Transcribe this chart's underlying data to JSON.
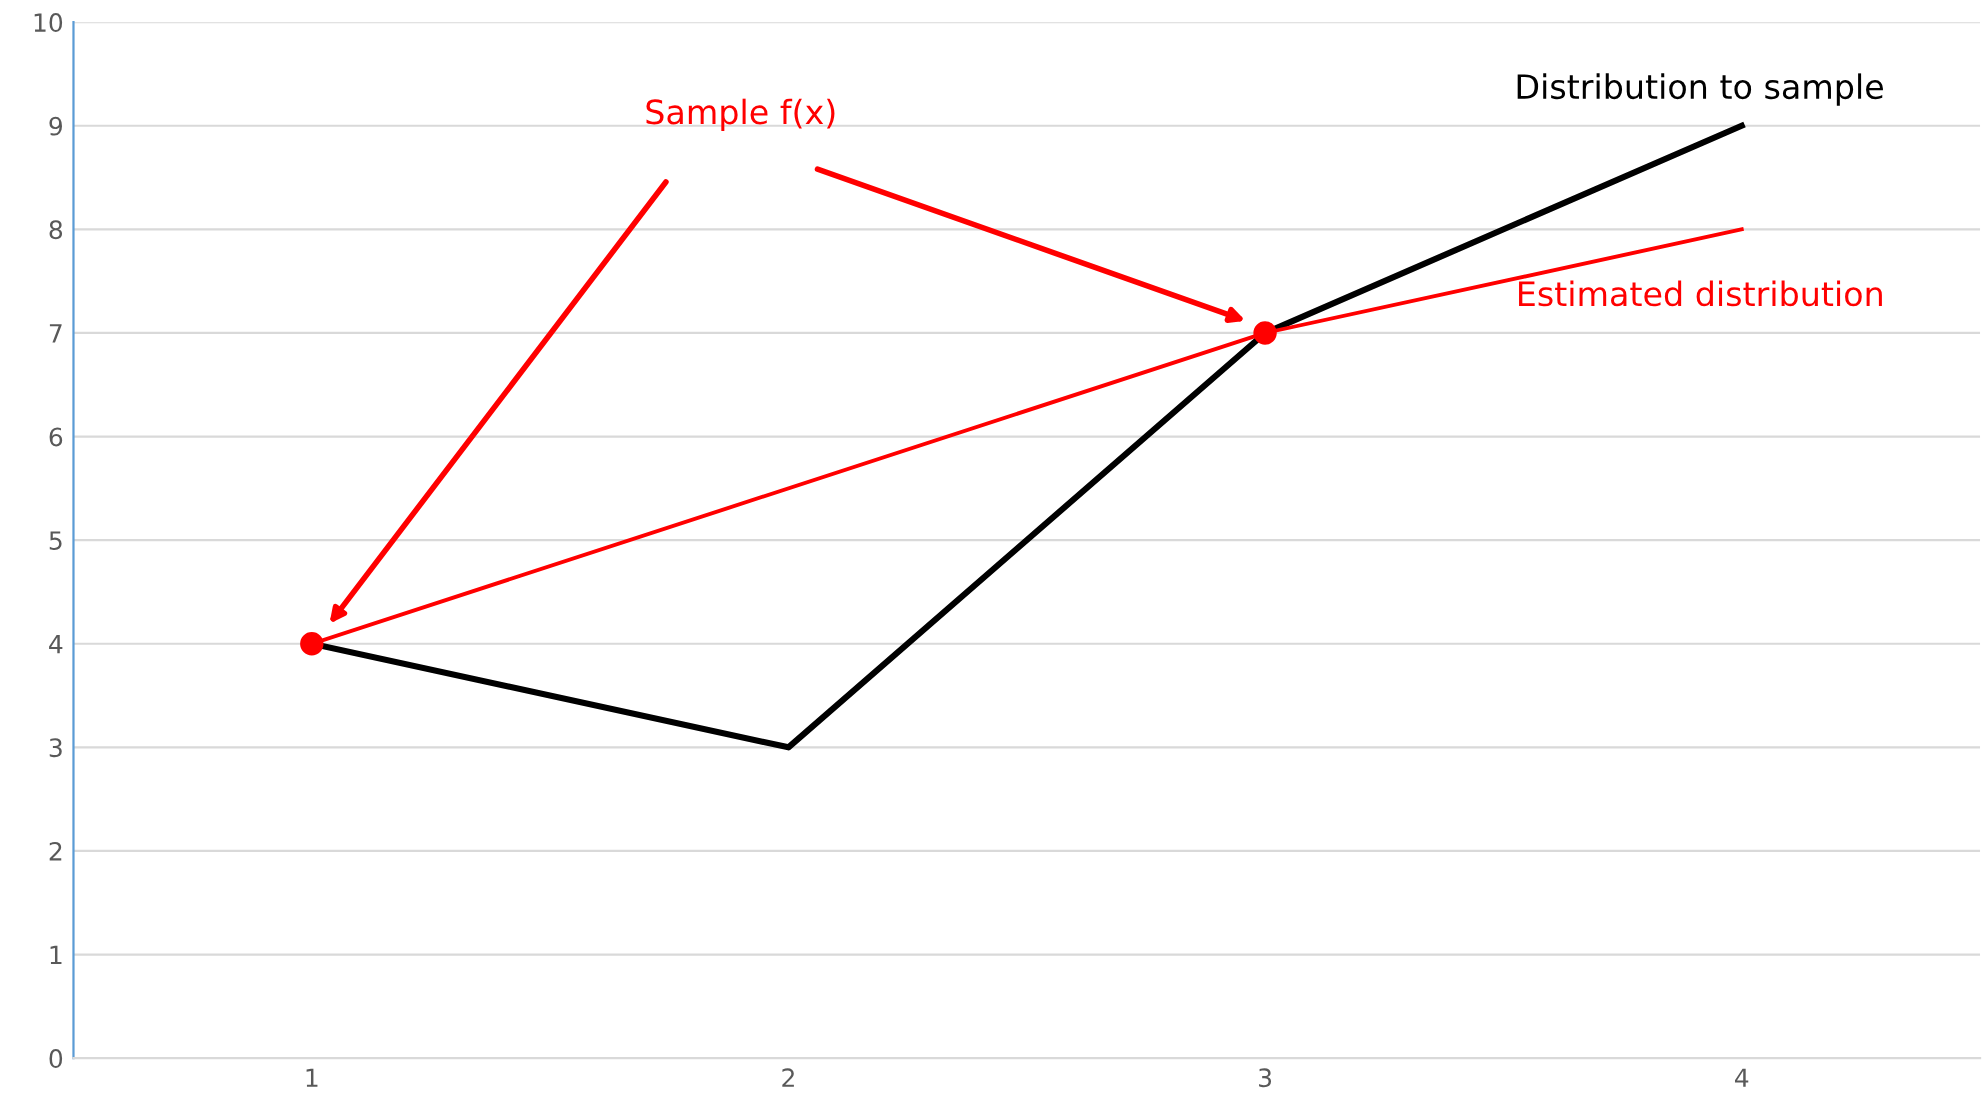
{
  "chart_data": {
    "type": "line",
    "xlim": [
      0.5,
      4.5
    ],
    "xticks": [
      1,
      2,
      3,
      4
    ],
    "ylim": [
      0,
      10
    ],
    "yticks": [
      0,
      1,
      2,
      3,
      4,
      5,
      6,
      7,
      8,
      9,
      10
    ],
    "grid": "y",
    "marker": "none",
    "line_style": "solid",
    "series": [
      {
        "name": "Distribution to sample",
        "color": "#000000",
        "x": [
          1,
          2,
          3,
          4
        ],
        "values": [
          4,
          3,
          7,
          9
        ]
      },
      {
        "name": "Estimated distribution",
        "color": "#ff0000",
        "x": [
          1,
          3,
          4
        ],
        "values": [
          4,
          7,
          8
        ]
      },
      {
        "type": "scatter",
        "color": "#ff0000",
        "x": [
          1,
          3
        ],
        "values": [
          4,
          7
        ],
        "marker": "circle"
      }
    ],
    "annotations": [
      "Sample f(x)"
    ]
  }
}
